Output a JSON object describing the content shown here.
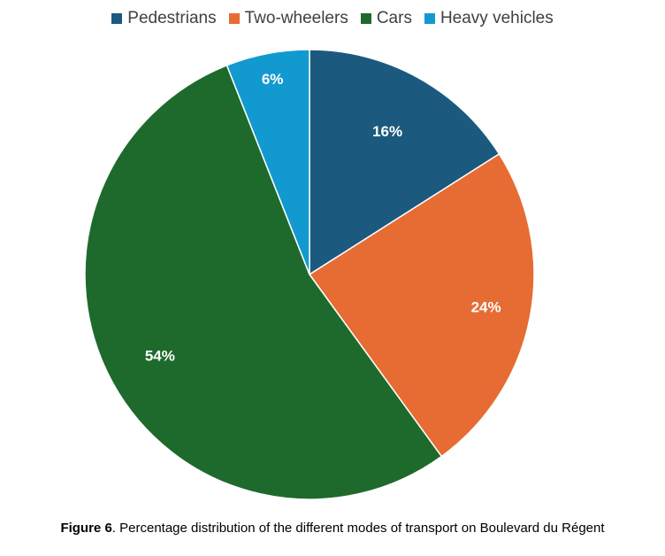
{
  "chart_data": {
    "type": "pie",
    "categories": [
      "Pedestrians",
      "Two-wheelers",
      "Cars",
      "Heavy vehicles"
    ],
    "values": [
      16,
      24,
      54,
      6
    ],
    "labels": [
      "16%",
      "24%",
      "54%",
      "6%"
    ],
    "colors": [
      "#1b5a7e",
      "#e66c33",
      "#1e6a2c",
      "#129ad0"
    ],
    "label_colors": [
      "#ffffff",
      "#ffffff",
      "#ffffff",
      "#ffffff"
    ],
    "legend_position": "top"
  },
  "caption": {
    "label": "Figure 6",
    "text": ". Percentage distribution of the different modes of transport on Boulevard du Régent"
  }
}
